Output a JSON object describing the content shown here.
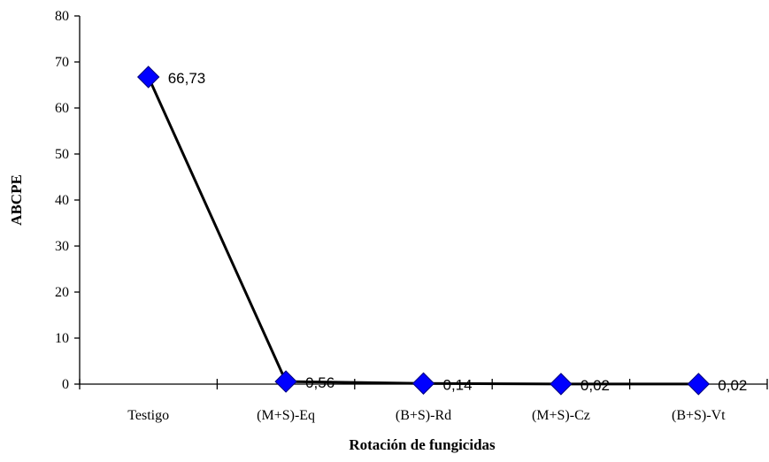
{
  "chart_data": {
    "type": "line",
    "title": "",
    "xlabel": "Rotación de fungicidas",
    "ylabel": "ABCPE",
    "categories": [
      "Testigo",
      "(M+S)-Eq",
      "(B+S)-Rd",
      "(M+S)-Cz",
      "(B+S)-Vt"
    ],
    "series": [
      {
        "values": [
          66.73,
          0.56,
          0.14,
          0.02,
          0.02
        ],
        "labels": [
          "66,73",
          "0,56",
          "0,14",
          "0,02",
          "0,02"
        ],
        "line_color": "#000000",
        "marker": "diamond",
        "marker_color": "#0000ff"
      }
    ],
    "ylim": [
      0,
      80
    ],
    "yticks": [
      "0",
      "10",
      "20",
      "30",
      "40",
      "50",
      "60",
      "70",
      "80"
    ],
    "grid": false,
    "legend": "none"
  }
}
